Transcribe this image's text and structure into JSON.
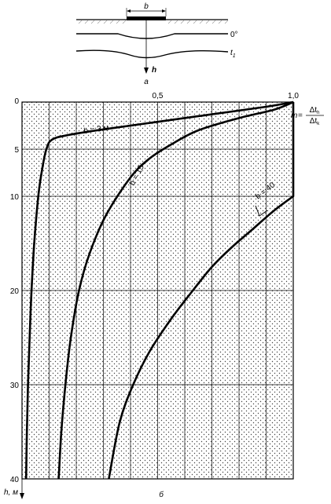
{
  "schematic": {
    "width_label": "b",
    "isotherm_zero_label": "0°",
    "isotherm_t_label": "t",
    "isotherm_t_sub": "1",
    "depth_axis_label": "h",
    "caption": "а"
  },
  "chart_data": {
    "type": "line",
    "caption": "б",
    "xlabel": "m",
    "xlabel_fraction": {
      "num": "Δt",
      "num_sub": "h",
      "den": "Δt",
      "den_sub": "k"
    },
    "ylabel": "h, м",
    "xlim": [
      0,
      1.0
    ],
    "ylim": [
      0,
      40
    ],
    "x_ticks": [
      {
        "value": 0.5,
        "label": "0,5"
      },
      {
        "value": 1.0,
        "label": "1,0"
      }
    ],
    "y_ticks": [
      {
        "value": 0,
        "label": "0"
      },
      {
        "value": 5,
        "label": "5"
      },
      {
        "value": 10,
        "label": "10"
      },
      {
        "value": 20,
        "label": "20"
      },
      {
        "value": 30,
        "label": "30"
      },
      {
        "value": 40,
        "label": "40"
      }
    ],
    "grid": true,
    "series": [
      {
        "name": "b = 3 м",
        "points": [
          [
            1.0,
            0
          ],
          [
            0.9,
            0.5
          ],
          [
            0.7,
            1.3
          ],
          [
            0.5,
            2.1
          ],
          [
            0.3,
            2.9
          ],
          [
            0.17,
            3.5
          ],
          [
            0.11,
            4.0
          ],
          [
            0.09,
            5.0
          ],
          [
            0.075,
            7.0
          ],
          [
            0.06,
            10
          ],
          [
            0.045,
            15
          ],
          [
            0.035,
            20
          ],
          [
            0.028,
            25
          ],
          [
            0.022,
            30
          ],
          [
            0.018,
            35
          ],
          [
            0.015,
            40
          ]
        ]
      },
      {
        "name": "b = 15",
        "points": [
          [
            1.0,
            0
          ],
          [
            0.93,
            0.8
          ],
          [
            0.8,
            1.7
          ],
          [
            0.65,
            3.0
          ],
          [
            0.55,
            4.5
          ],
          [
            0.47,
            6.0
          ],
          [
            0.4,
            8.0
          ],
          [
            0.31,
            12
          ],
          [
            0.25,
            16
          ],
          [
            0.21,
            20
          ],
          [
            0.18,
            25
          ],
          [
            0.16,
            30
          ],
          [
            0.145,
            35
          ],
          [
            0.135,
            40
          ]
        ]
      },
      {
        "name": "b = 40",
        "points": [
          [
            1.0,
            0
          ],
          [
            1.0,
            10
          ],
          [
            0.93,
            11.5
          ],
          [
            0.85,
            13.5
          ],
          [
            0.77,
            15.5
          ],
          [
            0.7,
            17.5
          ],
          [
            0.63,
            20
          ],
          [
            0.55,
            23
          ],
          [
            0.47,
            26.5
          ],
          [
            0.41,
            30
          ],
          [
            0.36,
            34
          ],
          [
            0.32,
            40
          ]
        ]
      }
    ]
  }
}
